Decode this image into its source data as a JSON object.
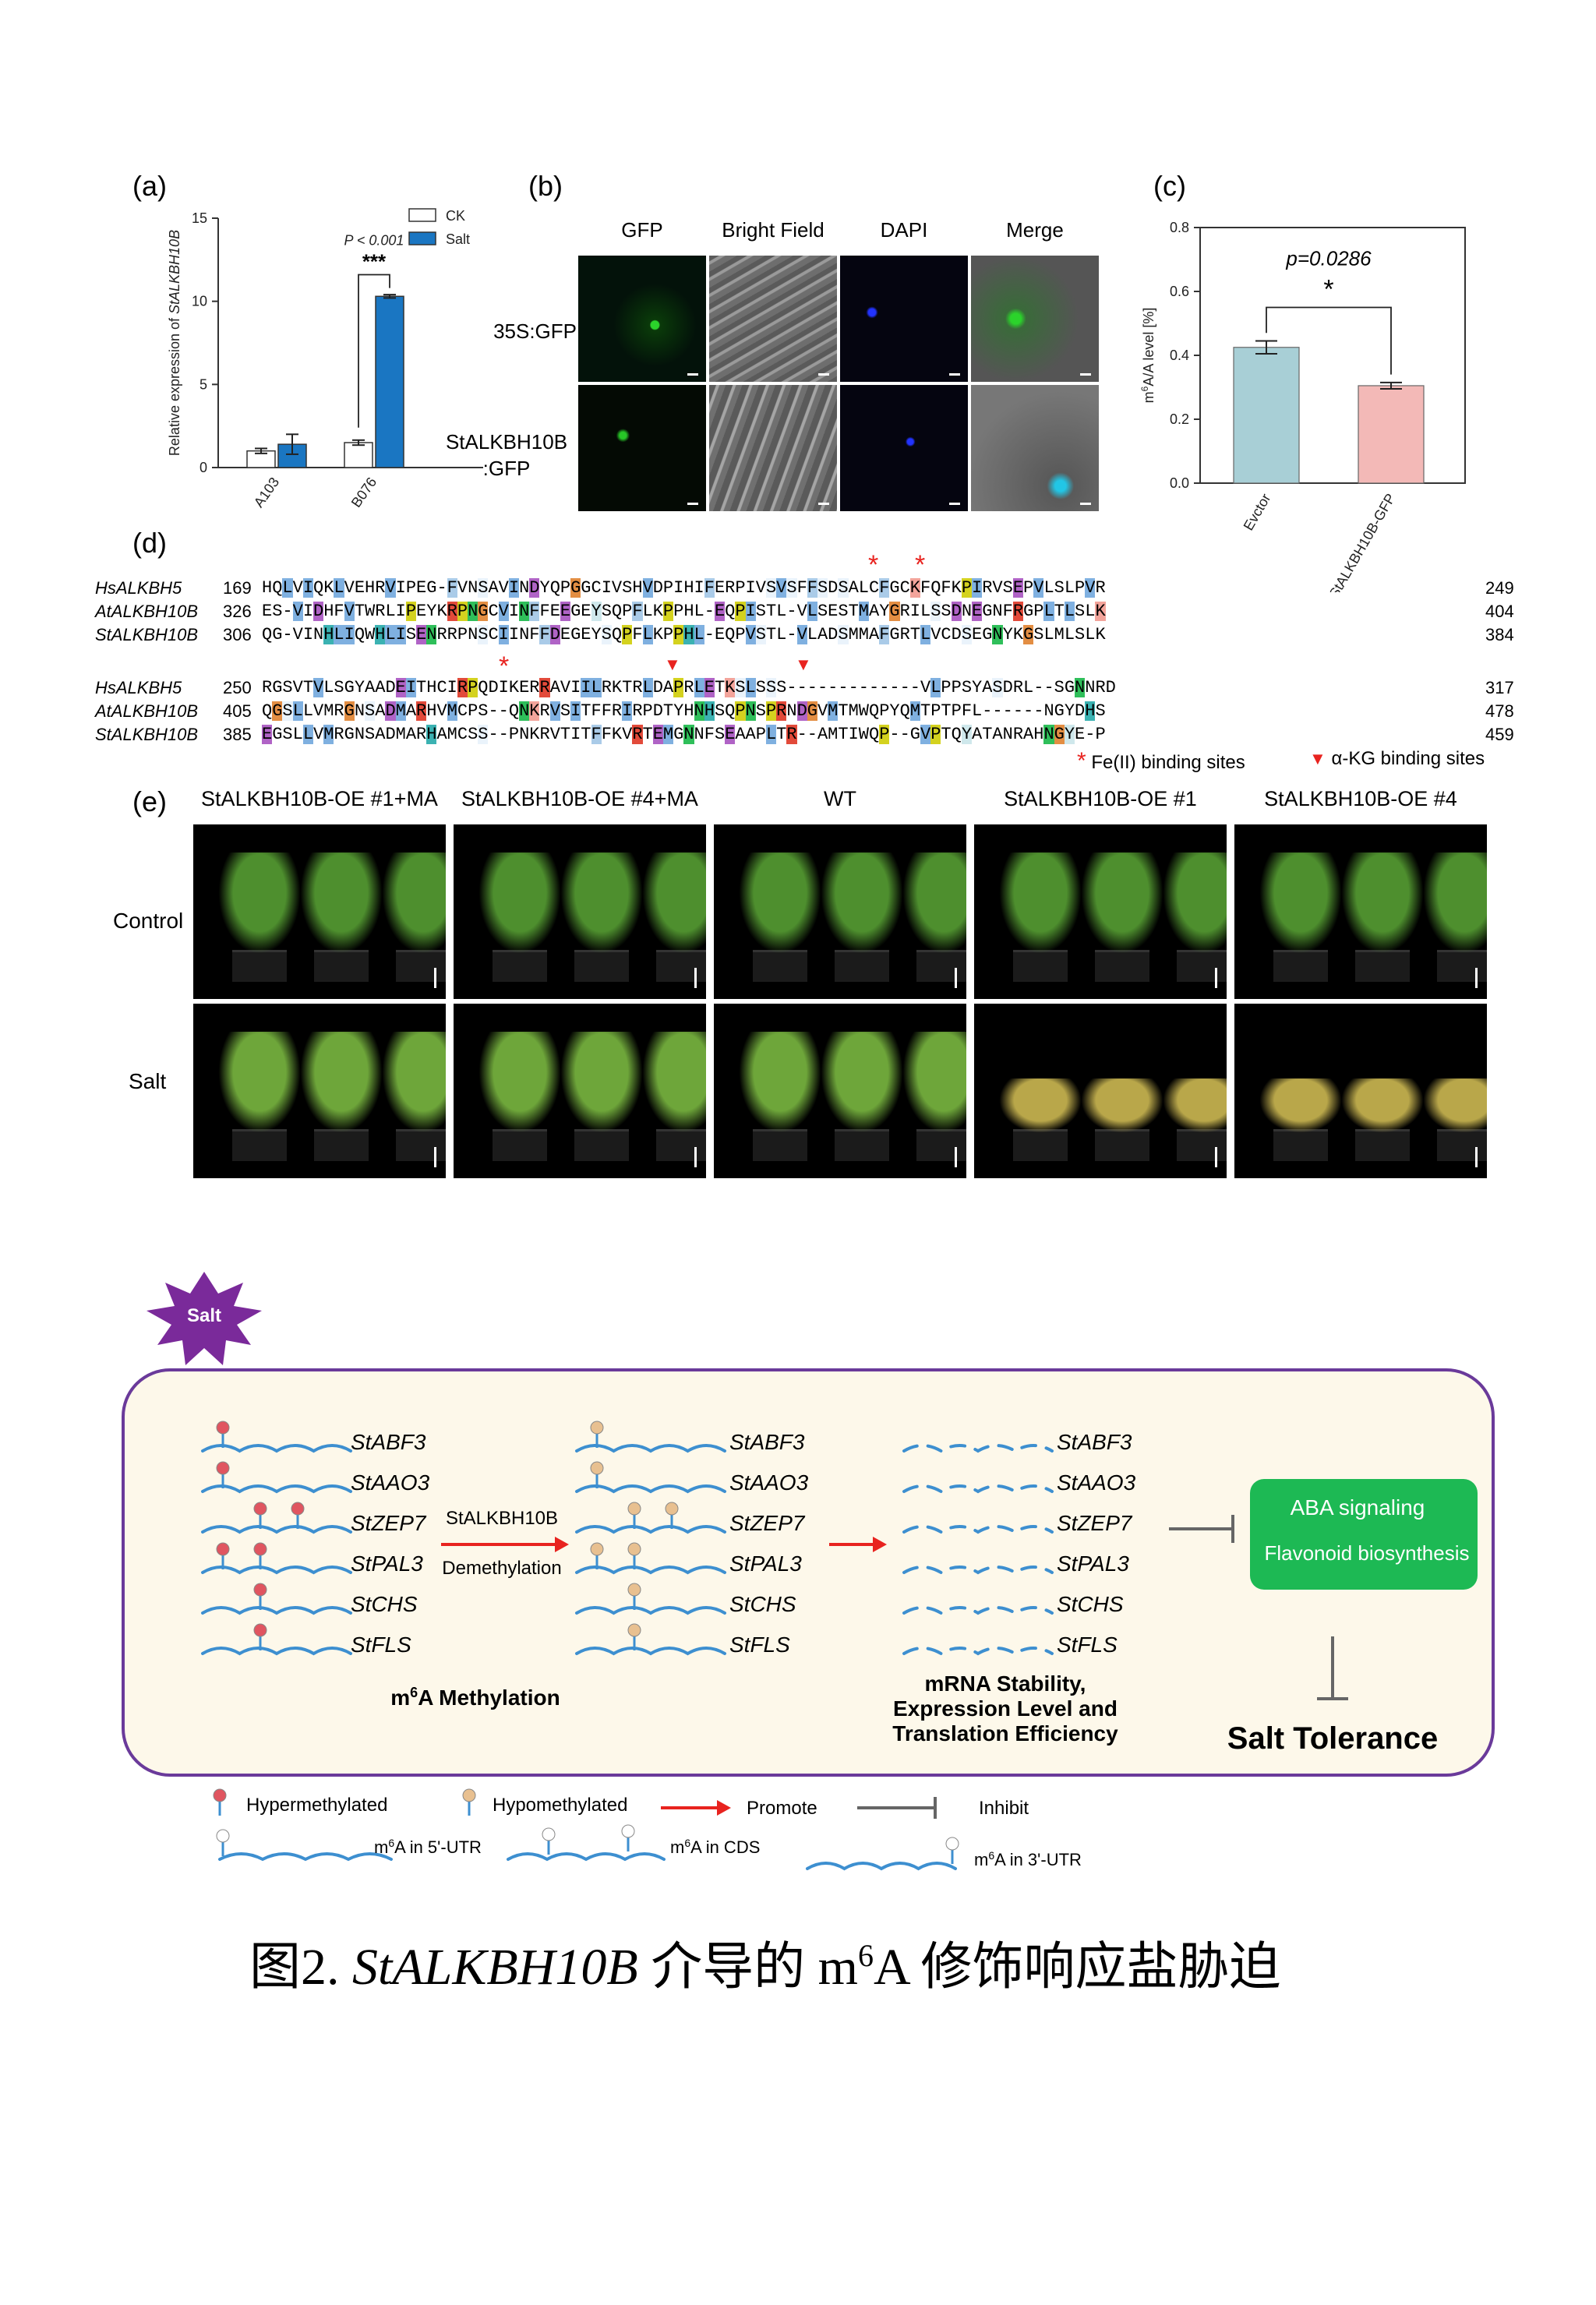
{
  "panel_labels": {
    "a": "(a)",
    "b": "(b)",
    "c": "(c)",
    "d": "(d)",
    "e": "(e)"
  },
  "panel_a": {
    "chart_data": {
      "type": "bar",
      "ylabel": "Relative expression of StALKBH10B",
      "ylim": [
        0,
        15
      ],
      "yticks": [
        "0",
        "5",
        "10",
        "15"
      ],
      "categories": [
        "A103",
        "B076"
      ],
      "series": [
        {
          "name": "CK",
          "values": [
            1.0,
            1.5
          ],
          "errors": [
            0.15,
            0.15
          ],
          "color": "#ffffff"
        },
        {
          "name": "Salt",
          "values": [
            1.4,
            10.3
          ],
          "errors": [
            0.6,
            0.1
          ],
          "color": "#1a76c2"
        }
      ],
      "annotation_p": "P < 0.001",
      "annotation_stars": "***"
    }
  },
  "panel_b": {
    "columns": [
      "GFP",
      "Bright Field",
      "DAPI",
      "Merge"
    ],
    "rows": [
      "35S:GFP",
      "StALKBH10B\n:GFP"
    ]
  },
  "panel_c": {
    "chart_data": {
      "type": "bar",
      "ylabel": "m6A/A level [%]",
      "ylim": [
        0.0,
        0.8
      ],
      "yticks": [
        "0.0",
        "0.2",
        "0.4",
        "0.6",
        "0.8"
      ],
      "categories": [
        "Evctor",
        "StALKBH10B-GFP"
      ],
      "values": [
        0.425,
        0.305
      ],
      "errors": [
        0.02,
        0.01
      ],
      "colors": [
        "#a8cfd6",
        "#f3b9b7"
      ],
      "annotation_p": "p=0.0286",
      "annotation_star": "*"
    }
  },
  "panel_d": {
    "block1": [
      {
        "name": "HsALKBH5",
        "start": "169",
        "seq": "HQLVIQKLVEHRVIPEG-FVNSAVINDYQPGGCIVSHVDPIHIFERPIVSVSFFSDSALCFGCKFQFKPIRVSEPVLSLPVR",
        "end": "249"
      },
      {
        "name": "AtALKBH10B",
        "start": "326",
        "seq": "ES-VIDHFVTWRLIPEYKRPNGCVINFFEEGEYSQPFLKPPHL-EQPISTL-VLSESTMAYGRILSSDNEGNFRGPLTLSLK",
        "end": "404"
      },
      {
        "name": "StALKBH10B",
        "start": "306",
        "seq": "QG-VINHLIQWHLISENRRPNSCIINFFDEGEYSQPFLKPPHL-EQPVSTL-VLADSMMAFGRTLVCDSEGNYKGSLMLSLK",
        "end": "384"
      }
    ],
    "block2": [
      {
        "name": "HsALKBH5",
        "start": "250",
        "seq": "RGSVTVLSGYAADEITHCIRPQDIKERRAVIILRKTRLDAPRLETKSLSSS-------------VLPPSYASDRL--SGNNRD",
        "end": "317"
      },
      {
        "name": "AtALKBH10B",
        "start": "405",
        "seq": "QGSLLVMRGNSADMARHVMCPS--QNKRVSITFFRIRPDTYHNHSQPNSPRNDGVMTMWQPYQMTPTPFL------NGYDHS",
        "end": "478"
      },
      {
        "name": "StALKBH10B",
        "start": "385",
        "seq": "EGSLLVMRGNSADMARHAMCSS--PNKRVTITFFKVRTEMGNNFSEAAPLTR--AMTIWQP--GVPTQYATANRAHNGYE-P",
        "end": "459"
      }
    ],
    "legend_fe": "Fe(II) binding sites",
    "legend_akg": "α-KG binding sites",
    "star": "*"
  },
  "panel_e": {
    "columns": [
      "StALKBH10B-OE #1+MA",
      "StALKBH10B-OE #4+MA",
      "WT",
      "StALKBH10B-OE #1",
      "StALKBH10B-OE #4"
    ],
    "rows": [
      "Control",
      "Salt"
    ]
  },
  "model": {
    "salt_badge": "Salt",
    "genes": [
      "StABF3",
      "StAAO3",
      "StZEP7",
      "StPAL3",
      "StCHS",
      "StFLS"
    ],
    "enzyme": "StALKBH10B",
    "process": "Demethylation",
    "methylation_label": "m6A Methylation",
    "stability_lines": [
      "mRNA Stability,",
      "Expression Level and",
      "Translation Efficiency"
    ],
    "outcome_1": "ABA signaling",
    "outcome_2": "Flavonoid biosynthesis",
    "final": "Salt Tolerance",
    "legend": {
      "hyper": "Hypermethylated",
      "hypo": "Hypomethylated",
      "promote": "Promote",
      "inhibit": "Inhibit",
      "utr5": "m6A in 5'-UTR",
      "cds": "m6A in CDS",
      "utr3": "m6A in 3'-UTR"
    },
    "colors": {
      "box_border": "#6a3a9a",
      "box_fill": "#fdf8ea",
      "green": "#1db954",
      "salt": "#7a2a9a",
      "hyper": "#e05560",
      "hypo": "#e8c090",
      "rna": "#3d8fd0",
      "arrow": "#e8231f",
      "inhibit": "#666666"
    }
  },
  "caption": {
    "prefix": "图2. ",
    "gene": "StALKBH10B",
    "suffix": " 介导的 m6A 修饰响应盐胁迫"
  }
}
